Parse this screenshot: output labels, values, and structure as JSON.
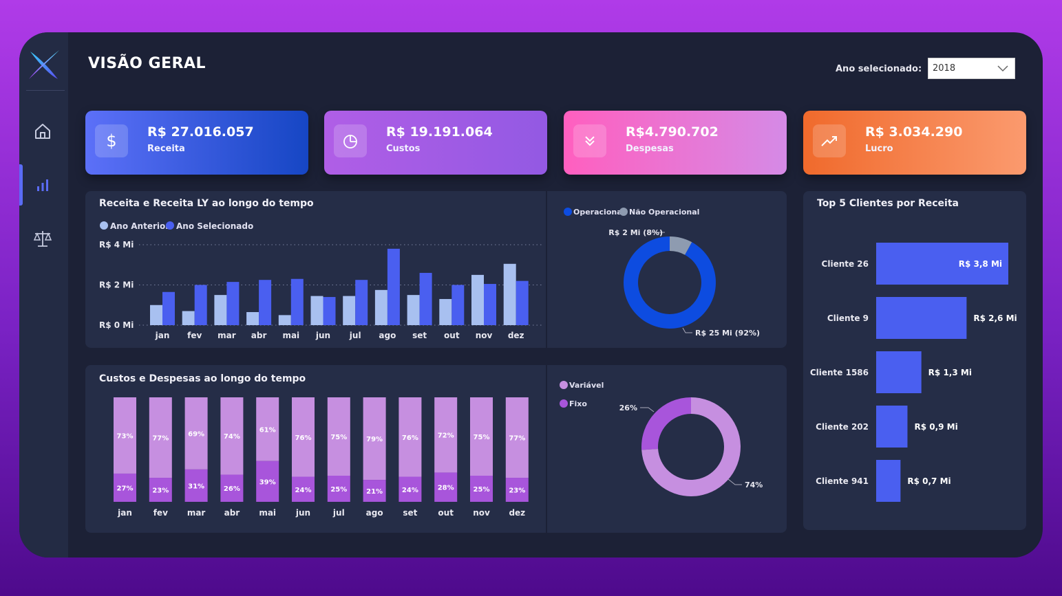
{
  "page": {
    "title": "VISÃO GERAL"
  },
  "filter": {
    "label": "Ano selecionado:",
    "value": "2018"
  },
  "sidebar": {
    "items": [
      {
        "name": "home",
        "icon": "home-icon"
      },
      {
        "name": "analytics",
        "icon": "bar-chart-icon",
        "active": true
      },
      {
        "name": "balance",
        "icon": "scale-icon"
      }
    ]
  },
  "kpis": [
    {
      "value": "R$ 27.016.057",
      "label": "Receita",
      "icon": "dollar-icon",
      "gradient": [
        "#5c70f8",
        "#1646c4"
      ]
    },
    {
      "value": "R$ 19.191.064",
      "label": "Custos",
      "icon": "pie-icon",
      "gradient": [
        "#b05ee6",
        "#9359e3"
      ]
    },
    {
      "value": "R$4.790.702",
      "label": "Despesas",
      "icon": "chevrons-down-icon",
      "gradient": [
        "#ff5fbf",
        "#d58ae6"
      ]
    },
    {
      "value": "R$ 3.034.290",
      "label": "Lucro",
      "icon": "trend-up-icon",
      "gradient": [
        "#f06a2c",
        "#fb9a6e"
      ]
    }
  ],
  "colors": {
    "prev_year": "#a8c0f0",
    "sel_year": "#4a5ff0",
    "operacional": "#0d4ce0",
    "nao_operacional": "#8e9bb0",
    "variavel": "#c68fe0",
    "fixo": "#a855db",
    "clients": "#4a5ff0"
  },
  "revenue_chart": {
    "title": "Receita e Receita LY ao longo do tempo",
    "legend": [
      "Ano Anterior",
      "Ano Selecionado"
    ],
    "y_ticks": [
      "R$ 4 Mi",
      "R$ 2 Mi",
      "R$ 0 Mi"
    ],
    "chart_data": {
      "type": "bar",
      "categories": [
        "jan",
        "fev",
        "mar",
        "abr",
        "mai",
        "jun",
        "jul",
        "ago",
        "set",
        "out",
        "nov",
        "dez"
      ],
      "series": [
        {
          "name": "Ano Anterior",
          "values": [
            1.0,
            0.7,
            1.5,
            0.65,
            0.5,
            1.45,
            1.45,
            1.75,
            1.5,
            1.3,
            2.5,
            3.05
          ]
        },
        {
          "name": "Ano Selecionado",
          "values": [
            1.65,
            2.0,
            2.15,
            2.25,
            2.3,
            1.4,
            2.25,
            3.8,
            2.6,
            2.0,
            2.05,
            2.2
          ]
        }
      ],
      "ylim": [
        0,
        4
      ]
    }
  },
  "revenue_donut": {
    "legend": [
      "Operacional",
      "Não Operacional"
    ],
    "labels": {
      "small": "R$ 2 Mi (8%)",
      "large": "R$ 25 Mi (92%)"
    },
    "chart_data": {
      "type": "pie",
      "categories": [
        "Operacional",
        "Não Operacional"
      ],
      "values": [
        92,
        8
      ]
    }
  },
  "costs_chart": {
    "title": "Custos e Despesas ao longo do tempo",
    "chart_data": {
      "type": "bar",
      "categories": [
        "jan",
        "fev",
        "mar",
        "abr",
        "mai",
        "jun",
        "jul",
        "ago",
        "set",
        "out",
        "nov",
        "dez"
      ],
      "series": [
        {
          "name": "Variável",
          "values": [
            73,
            77,
            69,
            74,
            61,
            76,
            75,
            79,
            76,
            72,
            75,
            77
          ],
          "labels": [
            "73%",
            "77%",
            "69%",
            "74%",
            "61%",
            "76%",
            "75%",
            "79%",
            "76%",
            "72%",
            "75%",
            "77%"
          ]
        },
        {
          "name": "Fixo",
          "values": [
            27,
            23,
            31,
            26,
            39,
            24,
            25,
            21,
            24,
            28,
            25,
            23
          ],
          "labels": [
            "27%",
            "23%",
            "31%",
            "26%",
            "39%",
            "24%",
            "25%",
            "21%",
            "24%",
            "28%",
            "25%",
            "23%"
          ]
        }
      ]
    }
  },
  "costs_donut": {
    "legend": [
      "Variável",
      "Fixo"
    ],
    "labels": {
      "small": "26%",
      "large": "74%"
    },
    "chart_data": {
      "type": "pie",
      "categories": [
        "Variável",
        "Fixo"
      ],
      "values": [
        74,
        26
      ]
    }
  },
  "clients_chart": {
    "title": "Top 5 Clientes por Receita",
    "chart_data": {
      "type": "bar",
      "categories": [
        "Cliente 26",
        "Cliente 9",
        "Cliente 1586",
        "Cliente 202",
        "Cliente 941"
      ],
      "values": [
        3.8,
        2.6,
        1.3,
        0.9,
        0.7
      ],
      "labels": [
        "R$ 3,8 Mi",
        "R$ 2,6 Mi",
        "R$ 1,3 Mi",
        "R$ 0,9 Mi",
        "R$ 0,7 Mi"
      ]
    }
  }
}
